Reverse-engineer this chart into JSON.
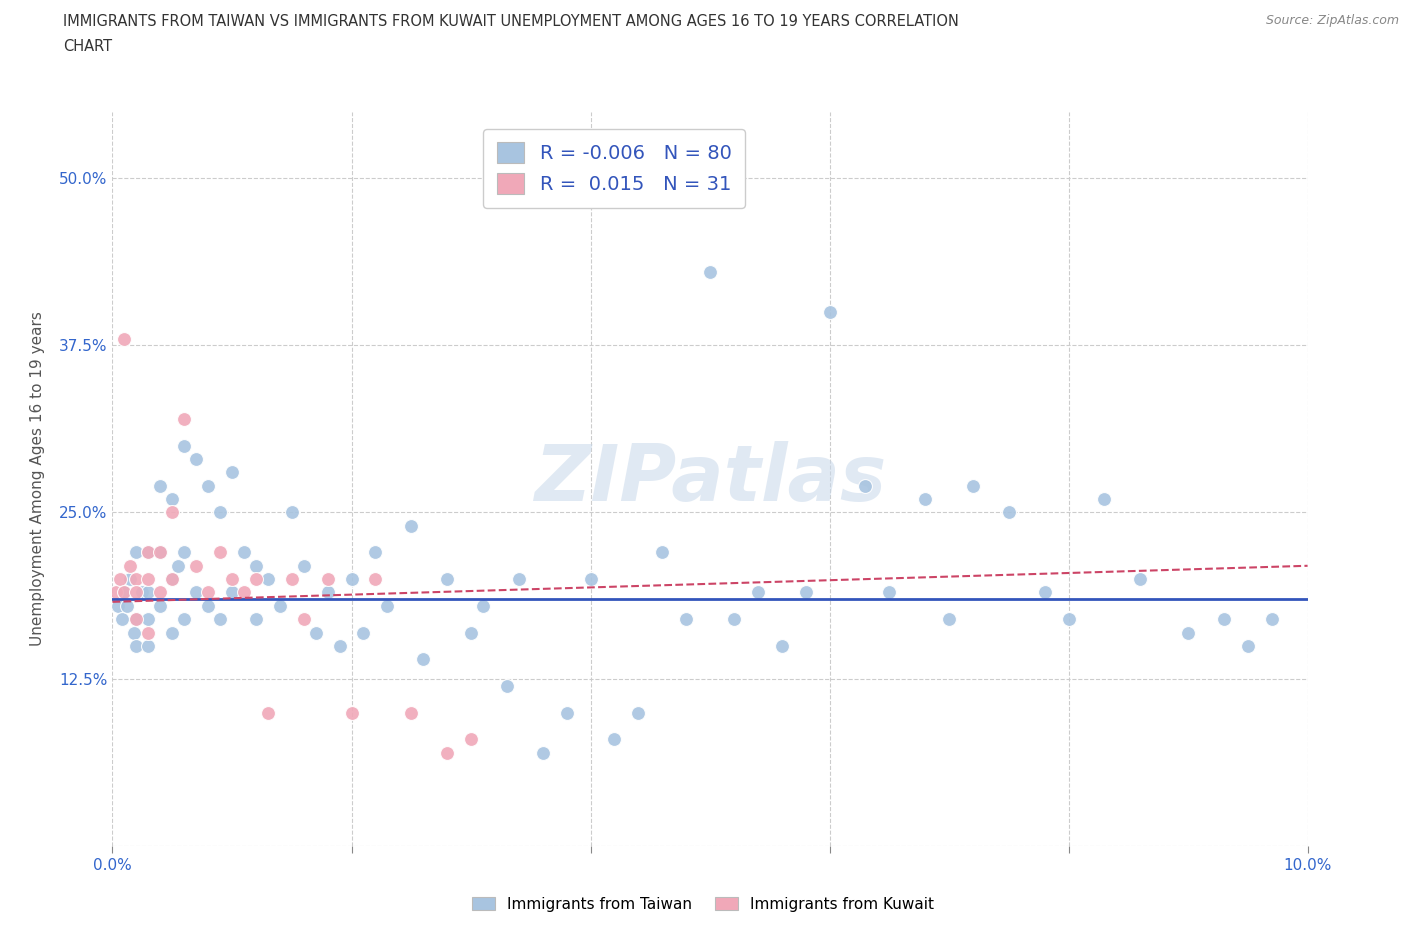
{
  "title": "IMMIGRANTS FROM TAIWAN VS IMMIGRANTS FROM KUWAIT UNEMPLOYMENT AMONG AGES 16 TO 19 YEARS CORRELATION\nCHART",
  "source": "Source: ZipAtlas.com",
  "ylabel_label": "Unemployment Among Ages 16 to 19 years",
  "xlim": [
    0.0,
    0.1
  ],
  "ylim": [
    0.0,
    0.55
  ],
  "x_ticks": [
    0.0,
    0.02,
    0.04,
    0.06,
    0.08,
    0.1
  ],
  "x_tick_labels": [
    "0.0%",
    "",
    "",
    "",
    "",
    "10.0%"
  ],
  "y_ticks": [
    0.0,
    0.125,
    0.25,
    0.375,
    0.5
  ],
  "y_tick_labels": [
    "",
    "12.5%",
    "25.0%",
    "37.5%",
    "50.0%"
  ],
  "taiwan_color": "#a8c4e0",
  "kuwait_color": "#f0a8b8",
  "taiwan_line_color": "#3355bb",
  "kuwait_line_color": "#cc4466",
  "taiwan_R": -0.006,
  "taiwan_N": 80,
  "kuwait_R": 0.015,
  "kuwait_N": 31,
  "watermark": "ZIPatlas",
  "taiwan_x": [
    0.0005,
    0.0008,
    0.001,
    0.0012,
    0.0015,
    0.0018,
    0.002,
    0.002,
    0.002,
    0.0025,
    0.003,
    0.003,
    0.003,
    0.003,
    0.004,
    0.004,
    0.004,
    0.005,
    0.005,
    0.005,
    0.0055,
    0.006,
    0.006,
    0.006,
    0.007,
    0.007,
    0.008,
    0.008,
    0.009,
    0.009,
    0.01,
    0.01,
    0.011,
    0.012,
    0.012,
    0.013,
    0.014,
    0.015,
    0.016,
    0.017,
    0.018,
    0.019,
    0.02,
    0.021,
    0.022,
    0.023,
    0.025,
    0.026,
    0.028,
    0.03,
    0.031,
    0.033,
    0.034,
    0.036,
    0.038,
    0.04,
    0.042,
    0.044,
    0.046,
    0.048,
    0.05,
    0.052,
    0.054,
    0.056,
    0.058,
    0.06,
    0.063,
    0.065,
    0.068,
    0.07,
    0.072,
    0.075,
    0.078,
    0.08,
    0.083,
    0.086,
    0.09,
    0.093,
    0.095,
    0.097
  ],
  "taiwan_y": [
    0.18,
    0.17,
    0.19,
    0.18,
    0.2,
    0.16,
    0.22,
    0.17,
    0.15,
    0.19,
    0.22,
    0.19,
    0.17,
    0.15,
    0.27,
    0.22,
    0.18,
    0.26,
    0.2,
    0.16,
    0.21,
    0.3,
    0.22,
    0.17,
    0.29,
    0.19,
    0.27,
    0.18,
    0.25,
    0.17,
    0.28,
    0.19,
    0.22,
    0.21,
    0.17,
    0.2,
    0.18,
    0.25,
    0.21,
    0.16,
    0.19,
    0.15,
    0.2,
    0.16,
    0.22,
    0.18,
    0.24,
    0.14,
    0.2,
    0.16,
    0.18,
    0.12,
    0.2,
    0.07,
    0.1,
    0.2,
    0.08,
    0.1,
    0.22,
    0.17,
    0.43,
    0.17,
    0.19,
    0.15,
    0.19,
    0.4,
    0.27,
    0.19,
    0.26,
    0.17,
    0.27,
    0.25,
    0.19,
    0.17,
    0.26,
    0.2,
    0.16,
    0.17,
    0.15,
    0.17
  ],
  "kuwait_x": [
    0.0003,
    0.0006,
    0.001,
    0.001,
    0.0015,
    0.002,
    0.002,
    0.002,
    0.003,
    0.003,
    0.003,
    0.004,
    0.004,
    0.005,
    0.005,
    0.006,
    0.007,
    0.008,
    0.009,
    0.01,
    0.011,
    0.012,
    0.013,
    0.015,
    0.016,
    0.018,
    0.02,
    0.022,
    0.025,
    0.028,
    0.03
  ],
  "kuwait_y": [
    0.19,
    0.2,
    0.38,
    0.19,
    0.21,
    0.2,
    0.19,
    0.17,
    0.22,
    0.2,
    0.16,
    0.22,
    0.19,
    0.25,
    0.2,
    0.32,
    0.21,
    0.19,
    0.22,
    0.2,
    0.19,
    0.2,
    0.1,
    0.2,
    0.17,
    0.2,
    0.1,
    0.2,
    0.1,
    0.07,
    0.08
  ]
}
